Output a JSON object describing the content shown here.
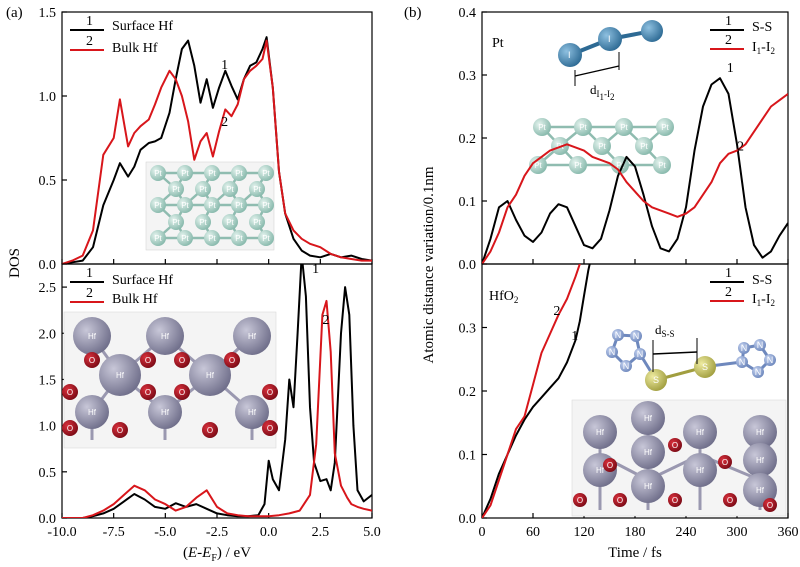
{
  "panel_labels": {
    "a": "(a)",
    "b": "(b)"
  },
  "colors": {
    "series1": "#000000",
    "series2": "#d8161b",
    "pt_atom": "#a9d3c8",
    "hf_atom": "#8f8ea8",
    "o_atom": "#9c1420",
    "s_atom": "#c9c760",
    "n_atom": "#8ea6d8",
    "pt_dimer": "#4a86b0"
  },
  "chart_data": [
    {
      "id": "a-top",
      "type": "line",
      "xlim": [
        -10,
        5
      ],
      "ylim": [
        0,
        1.5
      ],
      "yticks": [
        0.0,
        0.5,
        1.0,
        1.5
      ],
      "ylabel": "DOS",
      "legend": {
        "placement": "top-left",
        "entries": [
          {
            "number": "1",
            "label": "Surface Hf"
          },
          {
            "number": "2",
            "label": "Bulk Hf"
          }
        ]
      },
      "annotations": [
        {
          "text": "1",
          "x": -2.3,
          "y": 1.16
        },
        {
          "text": "2",
          "x": -2.3,
          "y": 0.82
        }
      ],
      "inset_atom_label": "Pt",
      "series": [
        {
          "key": "1",
          "x": [
            -10,
            -9.5,
            -9,
            -8.5,
            -8,
            -7.5,
            -7.2,
            -6.8,
            -6.5,
            -6.2,
            -5.8,
            -5.5,
            -5.2,
            -4.8,
            -4.5,
            -4.2,
            -3.9,
            -3.6,
            -3.3,
            -3,
            -2.7,
            -2.4,
            -2.1,
            -1.8,
            -1.5,
            -1.2,
            -0.9,
            -0.6,
            -0.3,
            -0.1,
            0.2,
            0.5,
            0.8,
            1.2,
            1.6,
            2,
            2.5,
            3,
            3.5,
            4,
            4.5,
            5
          ],
          "y": [
            0,
            0.01,
            0.02,
            0.1,
            0.35,
            0.5,
            0.6,
            0.52,
            0.58,
            0.68,
            0.72,
            0.73,
            0.75,
            0.9,
            1.1,
            1.28,
            1.33,
            1.18,
            0.96,
            1.1,
            0.93,
            1.05,
            1.15,
            1.06,
            0.98,
            1.1,
            1.18,
            1.2,
            1.28,
            1.35,
            1.05,
            0.55,
            0.3,
            0.15,
            0.08,
            0.05,
            0.04,
            0.06,
            0.04,
            0.05,
            0.03,
            0.02
          ]
        },
        {
          "key": "2",
          "x": [
            -10,
            -9.5,
            -9,
            -8.5,
            -8,
            -7.5,
            -7.2,
            -6.8,
            -6.5,
            -6.2,
            -5.8,
            -5.5,
            -5.2,
            -4.8,
            -4.5,
            -4.2,
            -3.9,
            -3.6,
            -3.3,
            -3,
            -2.7,
            -2.4,
            -2.1,
            -1.8,
            -1.5,
            -1.2,
            -0.9,
            -0.6,
            -0.3,
            -0.1,
            0.2,
            0.5,
            0.8,
            1.2,
            1.6,
            2,
            2.5,
            3,
            3.5,
            4,
            4.5,
            5
          ],
          "y": [
            0,
            0.02,
            0.05,
            0.2,
            0.65,
            0.75,
            0.98,
            0.7,
            0.78,
            0.82,
            0.86,
            0.95,
            1.05,
            1.15,
            1.1,
            1.0,
            0.85,
            0.62,
            0.73,
            0.78,
            0.64,
            0.79,
            0.92,
            0.88,
            0.95,
            1.1,
            1.15,
            1.18,
            1.22,
            1.33,
            1.05,
            0.55,
            0.3,
            0.2,
            0.15,
            0.12,
            0.1,
            0.06,
            0.04,
            0.03,
            0.02,
            0.02
          ]
        }
      ]
    },
    {
      "id": "a-bottom",
      "type": "line",
      "xlim": [
        -10,
        5
      ],
      "ylim": [
        0,
        2.75
      ],
      "xticks": [
        -10.0,
        -7.5,
        -5.0,
        -2.5,
        0.0,
        2.5,
        5.0
      ],
      "yticks": [
        0.0,
        0.5,
        1.0,
        1.5,
        2.0,
        2.5
      ],
      "xlabel_parts": {
        "open": "(",
        "e": "E",
        "minus": "-",
        "ef": "E",
        "sub": "F",
        "close": ") / eV"
      },
      "legend": {
        "placement": "top-left",
        "entries": [
          {
            "number": "1",
            "label": "Surface Hf"
          },
          {
            "number": "2",
            "label": "Bulk Hf"
          }
        ]
      },
      "annotations": [
        {
          "text": "1",
          "x": 2.1,
          "y": 2.65
        },
        {
          "text": "2",
          "x": 2.6,
          "y": 2.1
        }
      ],
      "inset_atom_labels": {
        "hf": "Hf",
        "o": "O"
      },
      "series": [
        {
          "key": "1",
          "x": [
            -10,
            -9,
            -8.5,
            -8,
            -7.5,
            -7,
            -6.5,
            -6,
            -5.5,
            -5,
            -4.5,
            -4,
            -3.5,
            -3,
            -2.5,
            -2,
            -1.5,
            -1,
            -0.5,
            -0.2,
            0,
            0.2,
            0.5,
            0.8,
            1.0,
            1.2,
            1.4,
            1.6,
            1.8,
            2.0,
            2.2,
            2.5,
            2.8,
            3.0,
            3.2,
            3.5,
            3.7,
            3.9,
            4.1,
            4.3,
            4.6,
            5
          ],
          "y": [
            0,
            0,
            0.02,
            0.05,
            0.1,
            0.18,
            0.26,
            0.2,
            0.12,
            0.1,
            0.16,
            0.12,
            0.15,
            0.1,
            0.05,
            0.03,
            0.02,
            0.02,
            0.03,
            0.15,
            0.62,
            0.42,
            0.3,
            0.85,
            1.5,
            1.2,
            2.0,
            2.85,
            2.4,
            1.2,
            0.6,
            0.4,
            0.42,
            0.3,
            0.6,
            2.0,
            2.5,
            2.2,
            1.0,
            0.3,
            0.18,
            0.25
          ]
        },
        {
          "key": "2",
          "x": [
            -10,
            -9,
            -8.5,
            -8,
            -7.5,
            -7,
            -6.5,
            -6,
            -5.5,
            -5,
            -4.5,
            -4,
            -3.5,
            -3,
            -2.5,
            -2,
            -1.5,
            -1,
            -0.5,
            0,
            0.5,
            1.0,
            1.5,
            2.0,
            2.3,
            2.6,
            2.8,
            3.0,
            3.2,
            3.5,
            3.8,
            4.0,
            4.3,
            4.6,
            5
          ],
          "y": [
            0,
            0,
            0.03,
            0.08,
            0.15,
            0.25,
            0.35,
            0.3,
            0.2,
            0.15,
            0.08,
            0.12,
            0.22,
            0.3,
            0.12,
            0.05,
            0.03,
            0.02,
            0.02,
            0.02,
            0.03,
            0.05,
            0.08,
            0.25,
            0.8,
            2.2,
            2.35,
            1.8,
            0.7,
            0.35,
            0.22,
            0.15,
            0.12,
            0.1,
            0.08
          ]
        }
      ]
    },
    {
      "id": "b-top",
      "type": "line",
      "xlim": [
        0,
        360
      ],
      "ylim": [
        0,
        0.4
      ],
      "yticks": [
        0.0,
        0.1,
        0.2,
        0.3,
        0.4
      ],
      "ylabel": "Atomic distance variation/0.1nm",
      "title_in_panel": "Pt",
      "legend": {
        "placement": "top-right",
        "entries": [
          {
            "number": "1",
            "label_main": "S-S"
          },
          {
            "number": "2",
            "label_parts": [
              "I",
              "1",
              "-I",
              "2"
            ]
          }
        ]
      },
      "annotations": [
        {
          "text": "1",
          "x": 288,
          "y": 0.305
        },
        {
          "text": "2",
          "x": 300,
          "y": 0.18
        }
      ],
      "dimer_label_parts": [
        "d",
        "I",
        "1",
        "-I",
        "2"
      ],
      "inset_atom_label": "Pt",
      "dimer_atom_label": "I",
      "series": [
        {
          "key": "1",
          "x": [
            0,
            10,
            20,
            30,
            40,
            50,
            60,
            70,
            80,
            90,
            100,
            110,
            120,
            130,
            140,
            150,
            160,
            170,
            180,
            190,
            200,
            210,
            220,
            230,
            240,
            250,
            260,
            270,
            280,
            290,
            300,
            310,
            320,
            330,
            340,
            350,
            360
          ],
          "y": [
            0,
            0.04,
            0.09,
            0.1,
            0.07,
            0.045,
            0.035,
            0.05,
            0.08,
            0.095,
            0.09,
            0.06,
            0.03,
            0.025,
            0.04,
            0.085,
            0.14,
            0.17,
            0.155,
            0.11,
            0.06,
            0.025,
            0.02,
            0.04,
            0.09,
            0.18,
            0.25,
            0.285,
            0.295,
            0.27,
            0.19,
            0.09,
            0.03,
            0.01,
            0.02,
            0.045,
            0.065
          ]
        },
        {
          "key": "2",
          "x": [
            0,
            10,
            20,
            30,
            40,
            50,
            60,
            70,
            80,
            90,
            100,
            110,
            120,
            130,
            140,
            150,
            160,
            170,
            180,
            190,
            200,
            210,
            220,
            230,
            240,
            250,
            260,
            270,
            280,
            290,
            300,
            310,
            320,
            330,
            340,
            350,
            360
          ],
          "y": [
            0,
            0.02,
            0.05,
            0.09,
            0.11,
            0.14,
            0.16,
            0.17,
            0.18,
            0.185,
            0.19,
            0.185,
            0.18,
            0.17,
            0.165,
            0.16,
            0.15,
            0.13,
            0.115,
            0.1,
            0.09,
            0.085,
            0.08,
            0.075,
            0.08,
            0.09,
            0.11,
            0.13,
            0.16,
            0.175,
            0.18,
            0.19,
            0.21,
            0.23,
            0.25,
            0.26,
            0.27
          ]
        }
      ]
    },
    {
      "id": "b-bottom",
      "type": "line",
      "xlim": [
        0,
        360
      ],
      "ylim": [
        0,
        0.4
      ],
      "xticks": [
        0,
        60,
        120,
        180,
        240,
        300,
        360
      ],
      "yticks": [
        0.0,
        0.1,
        0.2,
        0.3
      ],
      "xlabel": "Time / fs",
      "title_parts": [
        "HfO",
        "2"
      ],
      "legend": {
        "placement": "top-right",
        "entries": [
          {
            "number": "1",
            "label_main": "S-S"
          },
          {
            "number": "2",
            "label_parts": [
              "I",
              "1",
              "-I",
              "2"
            ]
          }
        ]
      },
      "annotations": [
        {
          "text": "1",
          "x": 105,
          "y": 0.28
        },
        {
          "text": "2",
          "x": 84,
          "y": 0.32
        }
      ],
      "molecule_label_parts": [
        "d",
        "S-S"
      ],
      "molecule_atom_labels": {
        "s": "S",
        "n": "N"
      },
      "inset_atom_labels": {
        "hf": "Hf",
        "o": "O"
      },
      "series": [
        {
          "key": "1",
          "x": [
            0,
            10,
            20,
            30,
            40,
            50,
            60,
            70,
            80,
            90,
            100,
            110,
            115,
            120,
            125,
            130
          ],
          "y": [
            0,
            0.03,
            0.07,
            0.1,
            0.13,
            0.155,
            0.175,
            0.19,
            0.205,
            0.22,
            0.245,
            0.28,
            0.31,
            0.35,
            0.39,
            0.42
          ]
        },
        {
          "key": "2",
          "x": [
            0,
            10,
            20,
            30,
            40,
            50,
            60,
            70,
            80,
            90,
            100,
            110,
            115,
            120
          ],
          "y": [
            0,
            0.02,
            0.06,
            0.1,
            0.14,
            0.16,
            0.21,
            0.26,
            0.29,
            0.32,
            0.345,
            0.38,
            0.4,
            0.42
          ]
        }
      ]
    }
  ]
}
